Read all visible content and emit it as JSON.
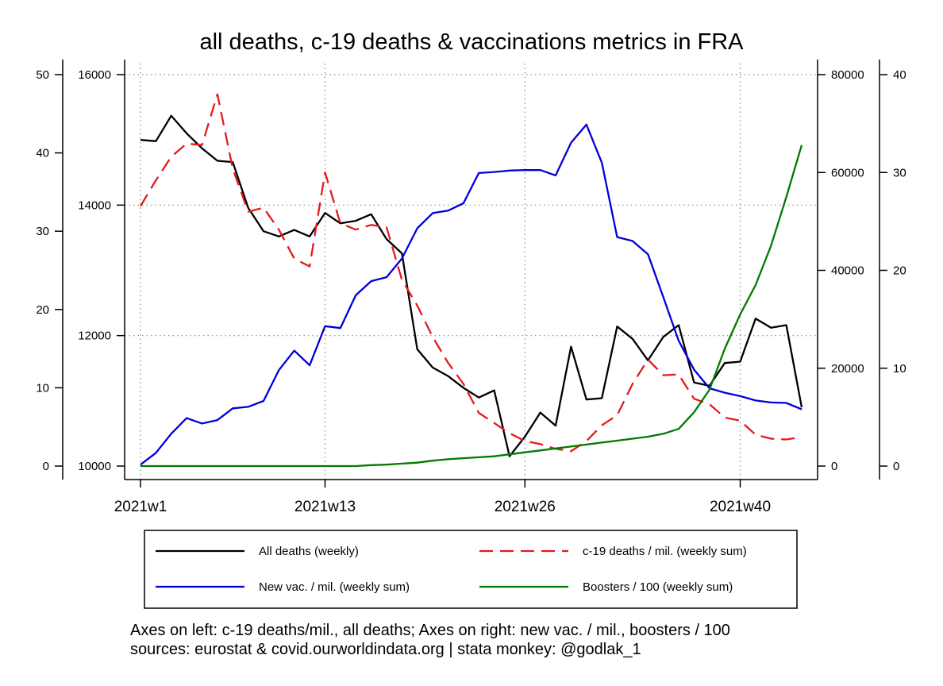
{
  "chart_data": {
    "type": "line",
    "title": "all deaths, c-19 deaths & vaccinations metrics in FRA",
    "note": [
      "Axes on left: c-19 deaths/mil., all deaths; Axes on right: new vac. / mil., boosters / 100",
      "sources: eurostat & covid.ourworldindata.org | stata monkey: @godlak_1"
    ],
    "x": [
      1,
      2,
      3,
      4,
      5,
      6,
      7,
      8,
      9,
      10,
      11,
      12,
      13,
      14,
      15,
      16,
      17,
      18,
      19,
      20,
      21,
      22,
      23,
      24,
      25,
      26,
      27,
      28,
      29,
      30,
      31,
      32,
      33,
      34,
      35,
      36,
      37,
      38,
      39,
      40,
      41,
      42,
      43,
      44
    ],
    "x_tick_values": [
      1,
      13,
      26,
      40
    ],
    "x_tick_labels": [
      "2021w1",
      "2021w13",
      "2021w26",
      "2021w40"
    ],
    "xlim": [
      1,
      44
    ],
    "axes": {
      "left_outer": {
        "ylim": [
          0,
          50
        ],
        "ticks": [
          0,
          10,
          20,
          30,
          40,
          50
        ]
      },
      "left_inner": {
        "ylim": [
          10000,
          16000
        ],
        "ticks": [
          10000,
          12000,
          14000,
          16000
        ]
      },
      "right_inner": {
        "ylim": [
          0,
          80000
        ],
        "ticks": [
          0,
          20000,
          40000,
          60000,
          80000
        ]
      },
      "right_outer": {
        "ylim": [
          0,
          40
        ],
        "ticks": [
          0,
          10,
          20,
          30,
          40
        ]
      }
    },
    "grid": true,
    "legend_position": "bottom",
    "series": [
      {
        "name": "All deaths (weekly)",
        "axis": "left_inner",
        "color": "#000000",
        "dash": "solid",
        "values": [
          15000,
          14980,
          15370,
          15100,
          14870,
          14680,
          14660,
          13960,
          13600,
          13520,
          13620,
          13520,
          13880,
          13720,
          13760,
          13860,
          13480,
          13260,
          11790,
          11510,
          11380,
          11200,
          11050,
          11160,
          10150,
          10450,
          10820,
          10620,
          11830,
          11020,
          11040,
          12140,
          11950,
          11620,
          11980,
          12160,
          11280,
          11230,
          11580,
          11600,
          12260,
          12120,
          12160,
          10900
        ]
      },
      {
        "name": "c-19 deaths / mil. (weekly sum)",
        "axis": "left_outer",
        "color": "#e41a1c",
        "dash": "dashed",
        "values": [
          33.2,
          36.5,
          39.5,
          41.2,
          41.0,
          47.5,
          38.0,
          32.5,
          33.0,
          30.2,
          26.5,
          25.5,
          37.5,
          31.0,
          30.2,
          30.8,
          30.5,
          23.8,
          20.5,
          16.5,
          13.2,
          10.5,
          6.8,
          5.5,
          4.2,
          3.2,
          2.8,
          2.2,
          1.9,
          3.2,
          5.2,
          6.5,
          10.5,
          13.6,
          11.6,
          11.7,
          8.6,
          7.9,
          6.2,
          5.8,
          4.0,
          3.5,
          3.4,
          3.7
        ]
      },
      {
        "name": "New vac. / mil. (weekly sum)",
        "axis": "right_inner",
        "color": "#0000dd",
        "dash": "solid",
        "values": [
          300,
          2700,
          6600,
          9800,
          8700,
          9400,
          11800,
          12100,
          13300,
          19600,
          23600,
          20600,
          28600,
          28200,
          34900,
          37800,
          38600,
          42400,
          48600,
          51700,
          52200,
          53700,
          59900,
          60100,
          60400,
          60500,
          60500,
          59400,
          66100,
          69800,
          62000,
          46800,
          46000,
          43300,
          34500,
          25600,
          19700,
          15900,
          15000,
          14300,
          13400,
          13000,
          12900,
          11600
        ]
      },
      {
        "name": "Boosters / 100 (weekly sum)",
        "axis": "right_outer",
        "color": "#007a00",
        "dash": "solid",
        "values": [
          0,
          0,
          0,
          0,
          0,
          0,
          0,
          0,
          0,
          0,
          0,
          0,
          0,
          0,
          0,
          0.1,
          0.15,
          0.25,
          0.35,
          0.55,
          0.7,
          0.8,
          0.9,
          1.0,
          1.2,
          1.4,
          1.6,
          1.8,
          2.0,
          2.2,
          2.4,
          2.6,
          2.8,
          3.0,
          3.3,
          3.8,
          5.5,
          7.8,
          12.0,
          15.5,
          18.5,
          22.5,
          27.5,
          32.8
        ]
      }
    ]
  }
}
